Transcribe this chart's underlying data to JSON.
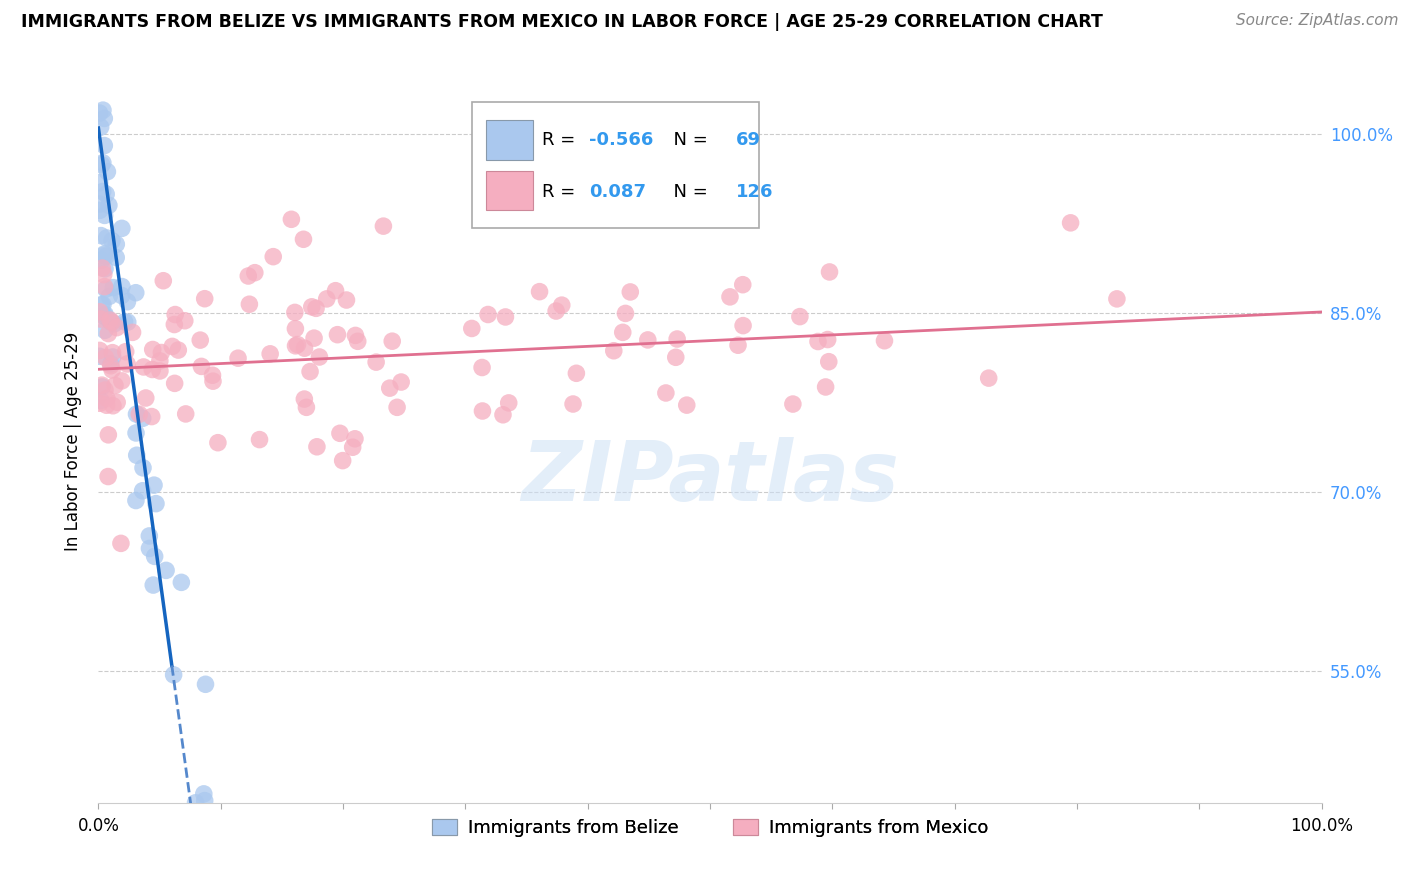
{
  "title": "IMMIGRANTS FROM BELIZE VS IMMIGRANTS FROM MEXICO IN LABOR FORCE | AGE 25-29 CORRELATION CHART",
  "source": "Source: ZipAtlas.com",
  "xlabel_belize": "Immigrants from Belize",
  "xlabel_mexico": "Immigrants from Mexico",
  "ylabel": "In Labor Force | Age 25-29",
  "xlim": [
    0.0,
    1.0
  ],
  "ylim": [
    0.44,
    1.045
  ],
  "yticks": [
    0.55,
    0.7,
    0.85,
    1.0
  ],
  "ytick_labels": [
    "55.0%",
    "70.0%",
    "85.0%",
    "100.0%"
  ],
  "xticks": [
    0.0,
    0.1,
    0.2,
    0.3,
    0.4,
    0.5,
    0.6,
    0.7,
    0.8,
    0.9,
    1.0
  ],
  "xtick_labels_show": [
    "0.0%",
    "",
    "",
    "",
    "",
    "",
    "",
    "",
    "",
    "",
    "100.0%"
  ],
  "belize_R": -0.566,
  "belize_N": 69,
  "mexico_R": 0.087,
  "mexico_N": 126,
  "belize_color": "#aac8ee",
  "belize_edge": "#aac8ee",
  "mexico_color": "#f5aec0",
  "mexico_edge": "#f5aec0",
  "belize_line_color": "#1565c0",
  "belize_dash_color": "#5588cc",
  "mexico_line_color": "#e07090",
  "watermark_color": "#cce0f5",
  "watermark_alpha": 0.55,
  "title_fontsize": 12.5,
  "source_fontsize": 11,
  "axis_label_fontsize": 12,
  "tick_fontsize": 12,
  "legend_fontsize": 13,
  "scatter_size": 160,
  "scatter_alpha": 0.75,
  "belize_trend_start_y": 1.005,
  "belize_trend_slope": -7.5,
  "mexico_trend_start_y": 0.803,
  "mexico_trend_slope": 0.048
}
